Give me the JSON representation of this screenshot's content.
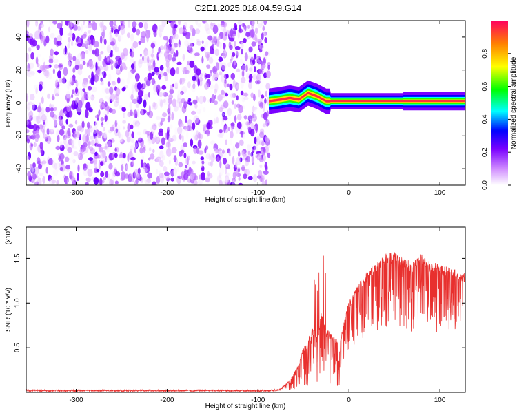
{
  "figure_title": "C2E1.2025.018.04.59.G14",
  "chart_data": [
    {
      "type": "heatmap",
      "xlabel": "Height of straight line (km)",
      "ylabel": "Frequency (Hz)",
      "xlim": [
        -355,
        128
      ],
      "ylim": [
        -50,
        50
      ],
      "xticks": [
        -300,
        -200,
        -100,
        0,
        100
      ],
      "yticks": [
        -40,
        -20,
        0,
        20,
        40
      ],
      "colorbar": {
        "label": "Normalized spectral amplitude",
        "range": [
          0,
          1
        ],
        "ticks": [
          "0.0",
          "0.2",
          "0.4",
          "0.6",
          "0.8"
        ],
        "tick_values": [
          0.0,
          0.2,
          0.4,
          0.6,
          0.8
        ]
      },
      "regions": [
        {
          "desc": "noise",
          "x_range": [
            -355,
            -88
          ],
          "y_range": [
            -50,
            50
          ],
          "amplitude_range": [
            0.0,
            0.2
          ]
        },
        {
          "desc": "signal",
          "x_range": [
            -88,
            128
          ],
          "center_frequency": [
            [
              -88,
              1
            ],
            [
              -75,
              2
            ],
            [
              -65,
              3
            ],
            [
              -55,
              2
            ],
            [
              -45,
              6
            ],
            [
              -35,
              4
            ],
            [
              -25,
              1
            ],
            [
              0,
              1
            ],
            [
              40,
              1
            ],
            [
              80,
              1
            ],
            [
              100,
              1
            ],
            [
              128,
              1
            ]
          ],
          "amplitude_range": [
            0.3,
            1.0
          ]
        }
      ]
    },
    {
      "type": "line",
      "xlabel": "Height of straight line (km)",
      "ylabel": "SNR (10 * v/v)",
      "scale_label": "(x10",
      "scale_exp": "4",
      "xlim": [
        -355,
        128
      ],
      "ylim": [
        0,
        1.85
      ],
      "xticks": [
        -300,
        -200,
        -100,
        0,
        100
      ],
      "yticks": [
        "0.5",
        "1.0",
        "1.5"
      ],
      "ytick_values": [
        0.5,
        1.0,
        1.5
      ],
      "series": [
        {
          "color": "#e8302e",
          "x": [
            -355,
            -250,
            -150,
            -88,
            -75,
            -65,
            -60,
            -55,
            -50,
            -45,
            -40,
            -35,
            -30,
            -25,
            -20,
            -15,
            -10,
            -5,
            0,
            10,
            20,
            30,
            40,
            50,
            60,
            70,
            80,
            90,
            100,
            110,
            120,
            128
          ],
          "y": [
            0.02,
            0.02,
            0.02,
            0.02,
            0.03,
            0.15,
            0.25,
            0.35,
            0.55,
            0.6,
            0.8,
            0.65,
            1.0,
            0.75,
            0.7,
            0.65,
            0.55,
            0.85,
            1.05,
            1.25,
            1.4,
            1.5,
            1.6,
            1.62,
            1.55,
            1.5,
            1.6,
            1.5,
            1.48,
            1.45,
            1.4,
            1.38
          ]
        }
      ]
    }
  ]
}
